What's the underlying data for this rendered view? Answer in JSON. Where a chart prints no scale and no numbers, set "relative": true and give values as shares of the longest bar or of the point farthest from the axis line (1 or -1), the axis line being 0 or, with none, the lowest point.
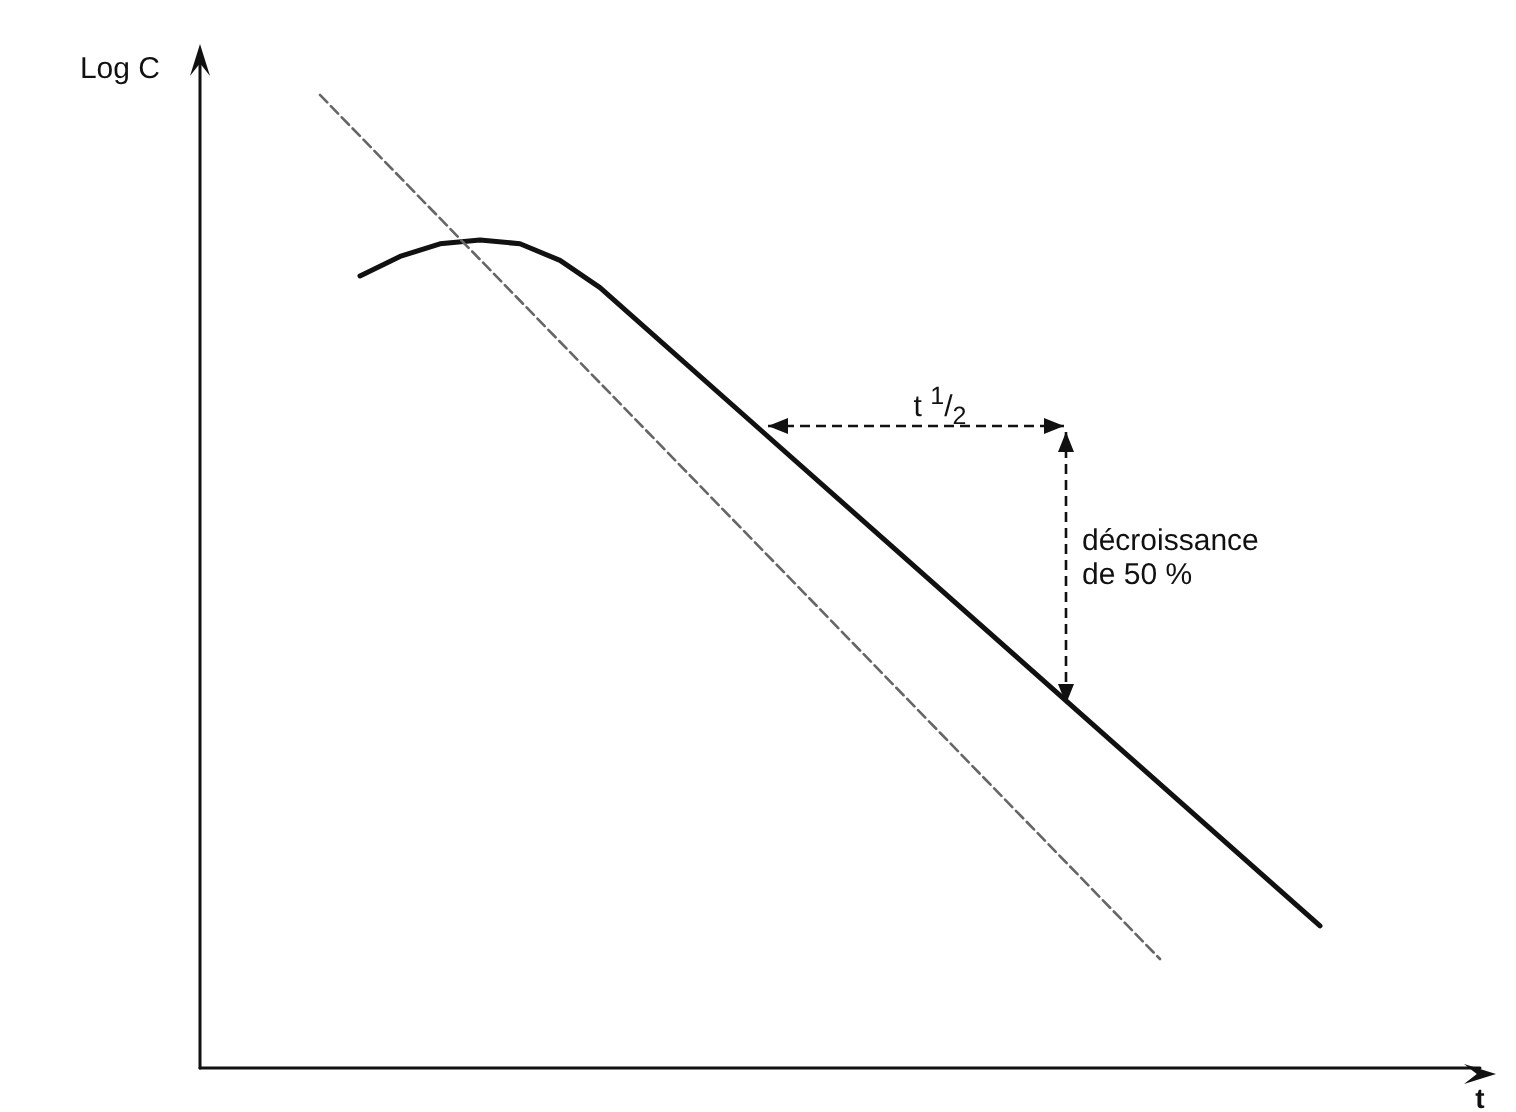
{
  "chart_data": {
    "type": "line",
    "relative": true,
    "marker": "none",
    "ylabel": "Log C",
    "xlabel": "t",
    "categories": [
      null,
      null,
      null,
      null,
      null,
      null,
      null,
      null,
      null,
      null,
      null,
      null,
      null,
      null,
      null,
      null,
      null,
      null,
      null,
      null,
      null,
      null,
      null,
      null,
      null,
      null,
      null,
      null,
      null,
      null,
      null,
      null,
      null
    ],
    "series": [
      {
        "color": "#111111",
        "line_style": "solid",
        "values": [
          null,
          null,
          null,
          null,
          0.814,
          0.834,
          0.847,
          0.851,
          0.847,
          0.83,
          0.802,
          null,
          null,
          null,
          null,
          null,
          null,
          null,
          null,
          null,
          null,
          null,
          null,
          null,
          null,
          null,
          null,
          null,
          0.146,
          null,
          null,
          null,
          null
        ]
      },
      {
        "color": "#666666",
        "line_style": "dashed",
        "values": [
          null,
          null,
          null,
          1.0,
          null,
          null,
          null,
          null,
          null,
          null,
          null,
          null,
          null,
          null,
          null,
          null,
          null,
          null,
          null,
          null,
          null,
          null,
          null,
          null,
          0.112,
          null,
          null,
          null,
          null,
          null,
          null,
          null,
          null
        ]
      }
    ],
    "annotations": [
      "t $^{1}$/$_{2}$",
      "décroissance de 50 %"
    ]
  }
}
